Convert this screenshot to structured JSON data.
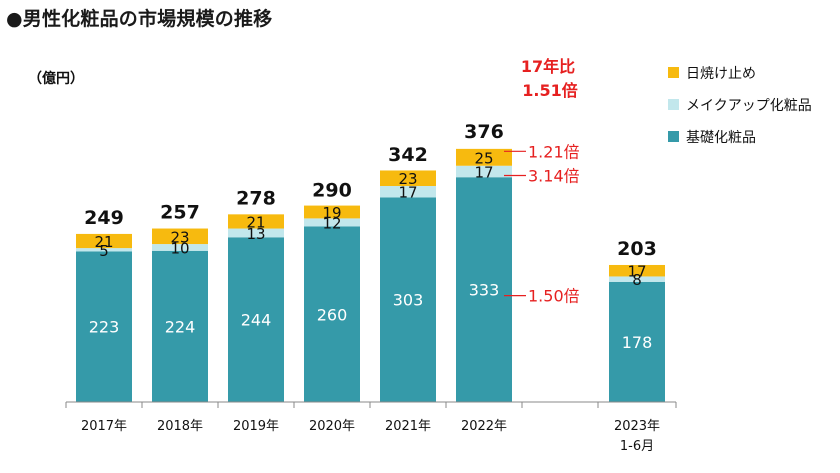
{
  "title": "●男性化粧品の市場規模の推移",
  "unit": "（億円）",
  "colors": {
    "base": "#359aa9",
    "makeup": "#c2e7ec",
    "sunscreen": "#f7ba0f",
    "annotation": "#e62020",
    "axis": "#888888",
    "text": "#111111"
  },
  "chart_data": {
    "type": "bar",
    "stacked": true,
    "categories": [
      "2017年",
      "2018年",
      "2019年",
      "2020年",
      "2021年",
      "2022年",
      "",
      "2023年\n1-6月"
    ],
    "series": [
      {
        "name": "基礎化粧品",
        "values": [
          223,
          224,
          244,
          260,
          303,
          333,
          null,
          178
        ]
      },
      {
        "name": "メイクアップ化粧品",
        "values": [
          5,
          10,
          13,
          12,
          17,
          17,
          null,
          8
        ]
      },
      {
        "name": "日焼け止め",
        "values": [
          21,
          23,
          21,
          19,
          23,
          25,
          null,
          17
        ]
      }
    ],
    "totals": [
      249,
      257,
      278,
      290,
      342,
      376,
      null,
      203
    ],
    "legend_order": [
      "日焼け止め",
      "メイクアップ化粧品",
      "基礎化粧品"
    ],
    "legend_position": "right",
    "ylim": [
      0,
      400
    ],
    "grid": false,
    "annotations": {
      "headline": [
        "17年比",
        "1.51倍"
      ],
      "sunscreen_ratio": "1.21倍",
      "makeup_ratio": "3.14倍",
      "base_ratio": "1.50倍"
    }
  }
}
